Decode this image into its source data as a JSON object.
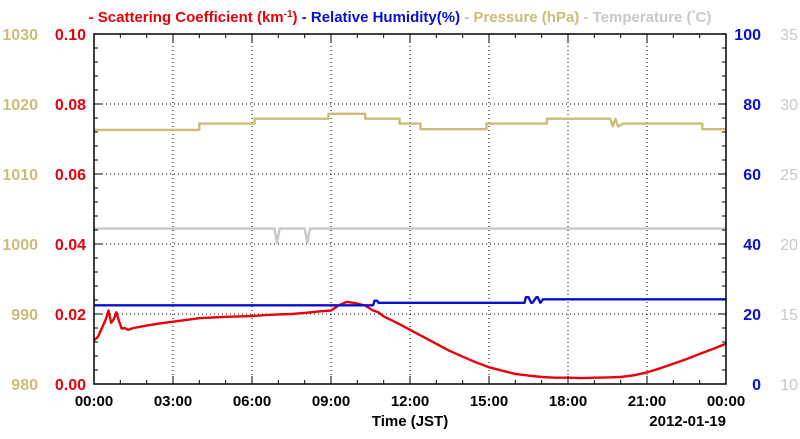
{
  "chart_data": {
    "type": "line",
    "legend": {
      "placement": "top",
      "entries": [
        {
          "key": "scat",
          "dash": "-",
          "text": "Scattering Coefficient (km",
          "sup": "-1",
          "close": ")",
          "color": "#e8000b"
        },
        {
          "key": "rh",
          "dash": "-",
          "text": "Relative Humidity(%)",
          "color": "#0a10d0"
        },
        {
          "key": "press",
          "dash": "-",
          "text": "Pressure (hPa)",
          "color": "#c8bd7a"
        },
        {
          "key": "temp",
          "dash": "-",
          "text": "Temperature (",
          "sup": "°",
          "close": "C)",
          "color": "#c8c8c8"
        }
      ]
    },
    "xlabel": "Time (JST)",
    "date_label": "2012-01-19",
    "x_range_hours": [
      0,
      24
    ],
    "x_tick_labels": [
      "00:00",
      "03:00",
      "06:00",
      "09:00",
      "12:00",
      "15:00",
      "18:00",
      "21:00",
      "00:00"
    ],
    "grid": true,
    "axes": {
      "pressure": {
        "side": "left-outer",
        "color": "#c8bd7a",
        "range": [
          980,
          1030
        ],
        "ticks": [
          "980",
          "990",
          "1000",
          "1010",
          "1020",
          "1030"
        ]
      },
      "scattering": {
        "side": "left-inner",
        "color": "#e8000b",
        "range": [
          0,
          0.1
        ],
        "ticks": [
          "0.00",
          "0.02",
          "0.04",
          "0.06",
          "0.08",
          "0.10"
        ]
      },
      "humidity": {
        "side": "right-inner",
        "color": "#0a10d0",
        "range": [
          0,
          100
        ],
        "ticks": [
          "0",
          "20",
          "40",
          "60",
          "80",
          "100"
        ]
      },
      "temperature": {
        "side": "right-outer",
        "color": "#c8c8c8",
        "range": [
          10,
          35
        ],
        "ticks": [
          "10",
          "15",
          "20",
          "25",
          "30",
          "35"
        ]
      }
    },
    "series": [
      {
        "name": "Scattering Coefficient (km-1)",
        "axis": "scattering",
        "color": "#e8000b",
        "x": [
          0,
          0.15,
          0.3,
          0.45,
          0.55,
          0.65,
          0.75,
          0.85,
          0.95,
          1.05,
          1.15,
          1.3,
          1.5,
          2,
          2.5,
          3,
          3.5,
          4,
          4.5,
          5,
          5.5,
          6,
          6.5,
          7,
          7.5,
          8,
          8.5,
          9,
          9.3,
          9.6,
          10,
          10.3,
          10.6,
          10.8,
          11,
          11.5,
          12,
          12.5,
          13,
          13.5,
          14,
          14.5,
          15,
          15.5,
          16,
          16.5,
          17,
          17.5,
          18,
          18.5,
          19,
          19.5,
          20,
          20.5,
          21,
          21.5,
          22,
          22.5,
          23,
          23.5,
          24
        ],
        "values": [
          0.0125,
          0.0135,
          0.016,
          0.0185,
          0.021,
          0.0175,
          0.0185,
          0.0205,
          0.018,
          0.0158,
          0.016,
          0.0155,
          0.016,
          0.0167,
          0.0173,
          0.0178,
          0.0183,
          0.0188,
          0.019,
          0.0192,
          0.0193,
          0.0194,
          0.0197,
          0.0199,
          0.02,
          0.0203,
          0.0207,
          0.021,
          0.0225,
          0.0235,
          0.023,
          0.0224,
          0.021,
          0.0205,
          0.0193,
          0.0175,
          0.0155,
          0.0135,
          0.0115,
          0.0095,
          0.0078,
          0.0062,
          0.0048,
          0.0038,
          0.0029,
          0.0024,
          0.002,
          0.0018,
          0.0018,
          0.0017,
          0.0018,
          0.0019,
          0.002,
          0.0025,
          0.0033,
          0.0045,
          0.0058,
          0.0071,
          0.0086,
          0.01,
          0.0115
        ]
      },
      {
        "name": "Relative Humidity(%)",
        "axis": "humidity",
        "color": "#0a10d0",
        "x": [
          0,
          10.6,
          10.65,
          10.75,
          10.8,
          16.35,
          16.4,
          16.5,
          16.6,
          16.65,
          16.8,
          16.85,
          16.95,
          17.05,
          24
        ],
        "values": [
          22.5,
          22.5,
          23.8,
          23.8,
          23.2,
          23.2,
          24.8,
          24.8,
          23.2,
          23.2,
          24.8,
          24.8,
          23.2,
          24.2,
          24.2
        ]
      },
      {
        "name": "Pressure (hPa)",
        "axis": "pressure",
        "color": "#c8bd7a",
        "x": [
          0,
          4,
          4,
          6.1,
          6.1,
          8.9,
          8.9,
          10.3,
          10.3,
          11.6,
          11.6,
          12.4,
          12.4,
          14.9,
          14.9,
          17.2,
          17.2,
          19.6,
          19.7,
          19.8,
          19.9,
          20.1,
          20.1,
          23.1,
          23.1,
          24
        ],
        "values": [
          1016.3,
          1016.3,
          1017.2,
          1017.2,
          1017.9,
          1017.9,
          1018.6,
          1018.6,
          1017.9,
          1017.9,
          1017.2,
          1017.2,
          1016.4,
          1016.4,
          1017.2,
          1017.2,
          1017.9,
          1017.9,
          1016.8,
          1017.9,
          1016.8,
          1017.2,
          1017.2,
          1017.2,
          1016.4,
          1016.4
        ]
      },
      {
        "name": "Temperature (°C)",
        "axis": "temperature",
        "color": "#c8c8c8",
        "x": [
          0,
          6.85,
          6.95,
          7.05,
          8.0,
          8.1,
          8.2,
          24
        ],
        "values": [
          21.1,
          21.1,
          20.1,
          21.1,
          21.1,
          20.1,
          21.1,
          21.1
        ]
      }
    ]
  }
}
